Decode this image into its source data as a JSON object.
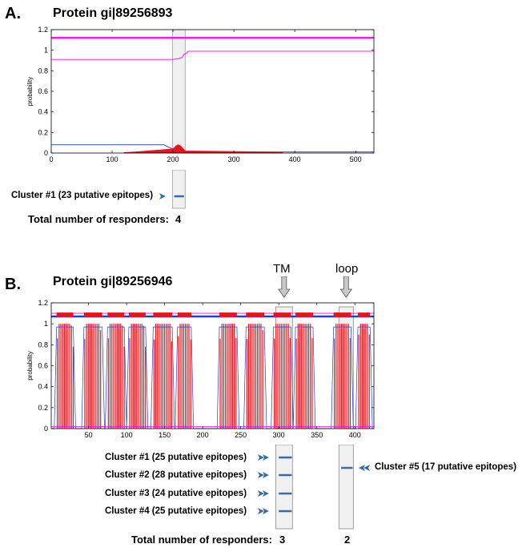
{
  "panelA": {
    "label": "A.",
    "title": "Protein gi|89256893",
    "cluster_labels": [
      "Cluster #1 (23 putative epitopes)"
    ],
    "responders_label": "Total number of responders:",
    "responders": [
      "4"
    ]
  },
  "panelB": {
    "label": "B.",
    "title": "Protein gi|89256946",
    "region_labels": [
      "TM",
      "loop"
    ],
    "cluster_labels": [
      "Cluster #1 (25 putative epitopes)",
      "Cluster #2 (28 putative epitopes)",
      "Cluster #3 (24 putative epitopes)",
      "Cluster #4 (25 putative epitopes)",
      "Cluster #5 (17 putative epitopes)"
    ],
    "responders_label": "Total number of responders:",
    "responders": [
      "3",
      "2"
    ]
  },
  "colors": {
    "magenta": "#ff00ff",
    "blue": "#1f3fd6",
    "red": "#e8141b",
    "cluster_bar": "#3c6aa0",
    "highlight_box": "#f0f0f0"
  },
  "chart_data": [
    {
      "type": "line",
      "title": "",
      "xlabel": "",
      "ylabel": "probability",
      "xlim": [
        0,
        530
      ],
      "ylim": [
        0,
        1.2
      ],
      "x_ticks": [
        0,
        100,
        200,
        300,
        400,
        500
      ],
      "y_ticks": [
        0,
        0.2,
        0.4,
        0.6,
        0.8,
        1,
        1.2
      ],
      "series": [
        {
          "color": "#ff00ff",
          "x": [
            0,
            530
          ],
          "y": [
            1.12,
            1.12
          ]
        },
        {
          "color": "#ff00ff",
          "x": [
            0,
            200,
            210,
            215,
            218,
            222,
            225,
            530
          ],
          "y": [
            0.91,
            0.91,
            0.92,
            0.93,
            0.96,
            0.97,
            0.99,
            0.99
          ]
        },
        {
          "color": "#1f3fd6",
          "x": [
            0,
            185,
            195,
            205,
            215,
            225,
            300,
            530
          ],
          "y": [
            0.08,
            0.08,
            0.05,
            0.03,
            0.02,
            0.01,
            0.01,
            0.01
          ]
        },
        {
          "color": "#e8141b",
          "x": [
            120,
            135,
            200,
            205,
            208,
            211,
            214,
            217,
            220,
            370,
            380
          ],
          "y": [
            0.005,
            0.01,
            0.04,
            0.07,
            0.08,
            0.075,
            0.06,
            0.04,
            0.02,
            0.01,
            0.005
          ]
        }
      ],
      "highlight_ranges": [
        [
          199,
          220
        ]
      ],
      "cluster_spans": [
        [
          202,
          218
        ]
      ]
    },
    {
      "type": "line",
      "title": "",
      "xlabel": "",
      "ylabel": "probability",
      "xlim": [
        1,
        425
      ],
      "ylim": [
        0,
        1.2
      ],
      "x_ticks": [
        50,
        100,
        150,
        200,
        250,
        300,
        350,
        400
      ],
      "y_ticks": [
        0,
        0.2,
        0.4,
        0.6,
        0.8,
        1,
        1.2
      ],
      "tm_segments": [
        [
          8,
          30
        ],
        [
          44,
          68
        ],
        [
          75,
          97
        ],
        [
          103,
          125
        ],
        [
          135,
          160
        ],
        [
          167,
          185
        ],
        [
          222,
          245
        ],
        [
          257,
          281
        ],
        [
          293,
          316
        ],
        [
          322,
          345
        ],
        [
          372,
          395
        ],
        [
          404,
          420
        ]
      ],
      "tm_probability": 1.0,
      "magenta_level": 1.1,
      "blue_level": 1.07,
      "highlight_ranges": [
        [
          296,
          318
        ],
        [
          379,
          398
        ]
      ],
      "cluster_spans": [
        [
          300,
          317
        ],
        [
          300,
          317
        ],
        [
          300,
          317
        ],
        [
          300,
          317
        ],
        [
          382,
          397
        ]
      ]
    }
  ]
}
